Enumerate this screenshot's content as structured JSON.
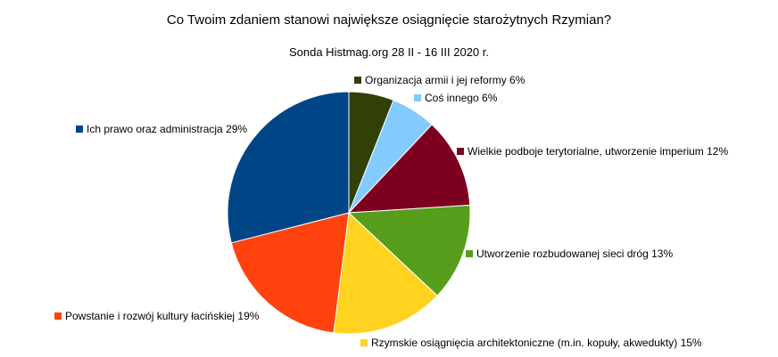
{
  "chart_data": {
    "type": "pie",
    "title": "Co Twoim zdaniem stanowi największe osiągnięcie starożytnych Rzymian?",
    "subtitle": "Sonda Histmag.org 28 II - 16 III 2020 r.",
    "slices": [
      {
        "label": "Organizacja armii i jej reformy 6%",
        "value": 6,
        "color": "#314004"
      },
      {
        "label": "Coś innego 6%",
        "value": 6,
        "color": "#83caff"
      },
      {
        "label": "Wielkie podboje terytorialne, utworzenie imperium  12%",
        "value": 12,
        "color": "#7e0021"
      },
      {
        "label": "Utworzenie rozbudowanej sieci dróg  13%",
        "value": 13,
        "color": "#579d1c"
      },
      {
        "label": "Rzymskie osiągnięcia architektoniczne (m.in. kopuły, akwedukty)  15%",
        "value": 15,
        "color": "#ffd320"
      },
      {
        "label": "Powstanie i rozwój kultury łacińskiej  19%",
        "value": 19,
        "color": "#ff420e"
      },
      {
        "label": "Ich prawo oraz administracja  29%",
        "value": 29,
        "color": "#004586"
      }
    ]
  }
}
